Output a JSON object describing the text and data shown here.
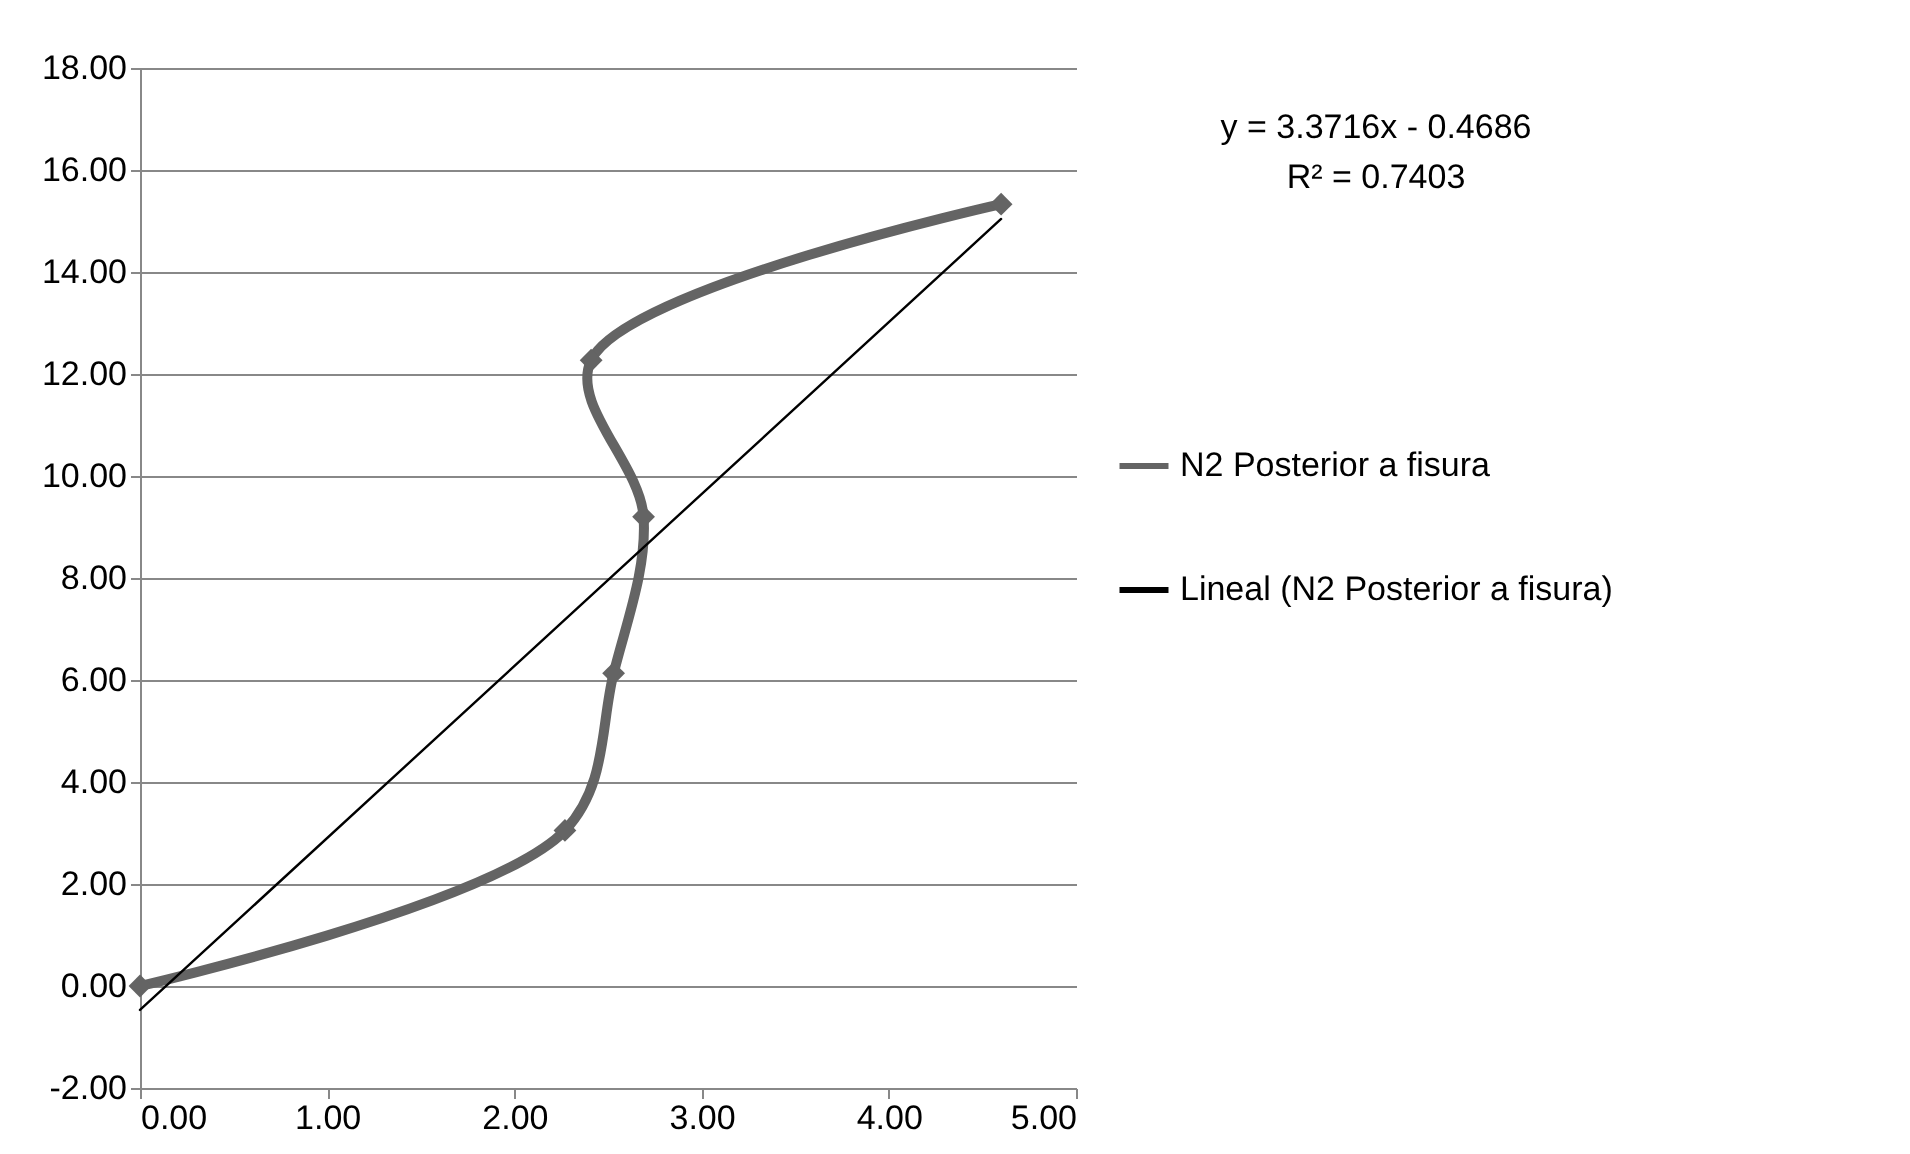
{
  "chart_data": {
    "type": "line",
    "x": [
      0,
      2.27,
      2.53,
      2.69,
      2.41,
      4.6
    ],
    "series": [
      {
        "name": "N2 Posterior a fisura",
        "color": "#646464",
        "values": [
          0,
          3.05,
          6.13,
          9.2,
          12.27,
          15.33
        ]
      },
      {
        "name": "Lineal (N2 Posterior a fisura)",
        "color": "#000000",
        "type": "line",
        "marker": "none",
        "x": [
          0,
          4.6
        ],
        "values": [
          -0.47,
          15.04
        ]
      }
    ],
    "xlim": [
      0,
      5
    ],
    "xticks": [
      {
        "value": 0,
        "label": "0.00"
      },
      {
        "value": 1,
        "label": "1.00"
      },
      {
        "value": 2,
        "label": "2.00"
      },
      {
        "value": 3,
        "label": "3.00"
      },
      {
        "value": 4,
        "label": "4.00"
      },
      {
        "value": 5,
        "label": "5.00"
      }
    ],
    "ylim": [
      -2,
      18
    ],
    "yticks": [
      {
        "value": -2,
        "label": "-2.00"
      },
      {
        "value": 0,
        "label": "0.00"
      },
      {
        "value": 2,
        "label": "2.00"
      },
      {
        "value": 4,
        "label": "4.00"
      },
      {
        "value": 6,
        "label": "6.00"
      },
      {
        "value": 8,
        "label": "8.00"
      },
      {
        "value": 10,
        "label": "10.00"
      },
      {
        "value": 12,
        "label": "12.00"
      },
      {
        "value": 14,
        "label": "14.00"
      },
      {
        "value": 16,
        "label": "16.00"
      },
      {
        "value": 18,
        "label": "18.00"
      }
    ],
    "annotations": [
      "y = 3.3716x - 0.4686",
      "R² = 0.7403"
    ],
    "grid": "y",
    "legend": "right",
    "marker": "diamond"
  }
}
